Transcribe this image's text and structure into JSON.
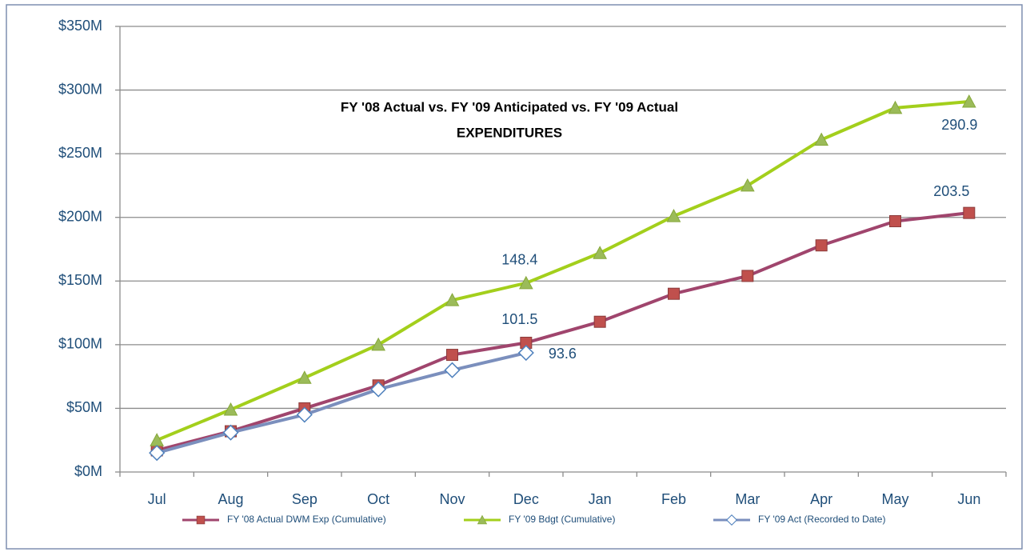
{
  "chart_data": {
    "type": "line",
    "title": "FY '08 Actual vs. FY '09 Anticipated vs. FY '09 Actual",
    "subtitle": "EXPENDITURES",
    "categories": [
      "Jul",
      "Aug",
      "Sep",
      "Oct",
      "Nov",
      "Dec",
      "Jan",
      "Feb",
      "Mar",
      "Apr",
      "May",
      "Jun"
    ],
    "series": [
      {
        "name": "FY '08 Actual DWM Exp (Cumulative)",
        "color": "#a0456d",
        "marker": "square",
        "marker_color": "#c0504d",
        "values": [
          17,
          32,
          50,
          68,
          92,
          101.5,
          118,
          140,
          154,
          178,
          197,
          203.5
        ],
        "label_points": [
          5,
          11
        ]
      },
      {
        "name": "FY '09 Bdgt (Cumulative)",
        "color": "#a3cf1c",
        "marker": "triangle",
        "marker_color": "#9bbb59",
        "values": [
          25,
          49,
          74,
          100,
          135,
          148.4,
          172,
          201,
          225,
          261,
          286,
          290.9
        ],
        "label_points": [
          5,
          11
        ]
      },
      {
        "name": "FY '09 Act (Recorded to Date)",
        "color": "#7b8fbd",
        "marker": "diamond",
        "marker_color": "#4f81bd",
        "values": [
          15,
          31,
          45,
          65,
          80,
          93.6,
          null,
          null,
          null,
          null,
          null,
          null
        ],
        "label_points": [
          5
        ]
      }
    ],
    "ylim": [
      0,
      350
    ],
    "yticks": [
      {
        "value": 0,
        "label": "$0M"
      },
      {
        "value": 50,
        "label": "$50M"
      },
      {
        "value": 100,
        "label": "$100M"
      },
      {
        "value": 150,
        "label": "$150M"
      },
      {
        "value": 200,
        "label": "$200M"
      },
      {
        "value": 250,
        "label": "$250M"
      },
      {
        "value": 300,
        "label": "$300M"
      },
      {
        "value": 350,
        "label": "$350M"
      }
    ],
    "grid": true,
    "legend": "bottom"
  }
}
